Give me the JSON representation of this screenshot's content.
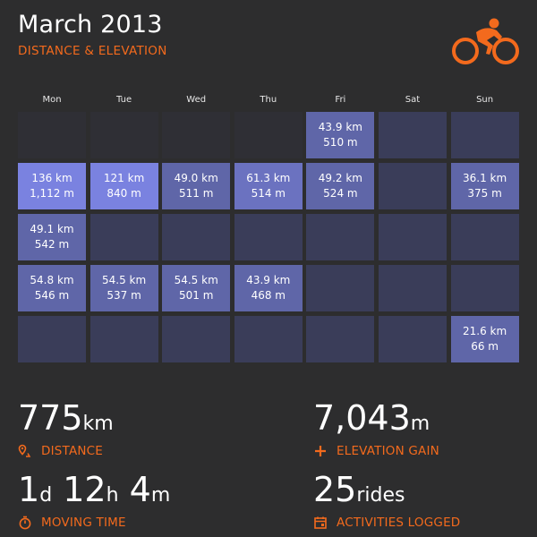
{
  "header": {
    "title": "March 2013",
    "subtitle": "DISTANCE & ELEVATION"
  },
  "colors": {
    "accent": "#f36a1d",
    "background": "#2d2d2e",
    "empty_cell": "#2f2f35",
    "no_ride_cell": "#3a3d59",
    "level_1": "#5f66a8",
    "level_2": "#6b72c0",
    "level_3": "#7a82e0"
  },
  "calendar": {
    "day_headers": [
      "Mon",
      "Tue",
      "Wed",
      "Thu",
      "Fri",
      "Sat",
      "Sun"
    ],
    "weeks": [
      [
        {
          "state": "outside"
        },
        {
          "state": "outside"
        },
        {
          "state": "outside"
        },
        {
          "state": "outside"
        },
        {
          "state": "ride",
          "level": 1,
          "distance": "43.9 km",
          "elevation": "510 m"
        },
        {
          "state": "none"
        },
        {
          "state": "none"
        }
      ],
      [
        {
          "state": "ride",
          "level": 3,
          "distance": "136 km",
          "elevation": "1,112 m"
        },
        {
          "state": "ride",
          "level": 3,
          "distance": "121 km",
          "elevation": "840 m"
        },
        {
          "state": "ride",
          "level": 1,
          "distance": "49.0 km",
          "elevation": "511 m"
        },
        {
          "state": "ride",
          "level": 2,
          "distance": "61.3 km",
          "elevation": "514 m"
        },
        {
          "state": "ride",
          "level": 1,
          "distance": "49.2 km",
          "elevation": "524 m"
        },
        {
          "state": "none"
        },
        {
          "state": "ride",
          "level": 1,
          "distance": "36.1 km",
          "elevation": "375 m"
        }
      ],
      [
        {
          "state": "ride",
          "level": 1,
          "distance": "49.1 km",
          "elevation": "542 m"
        },
        {
          "state": "none"
        },
        {
          "state": "none"
        },
        {
          "state": "none"
        },
        {
          "state": "none"
        },
        {
          "state": "none"
        },
        {
          "state": "none"
        }
      ],
      [
        {
          "state": "ride",
          "level": 1,
          "distance": "54.8 km",
          "elevation": "546 m"
        },
        {
          "state": "ride",
          "level": 1,
          "distance": "54.5 km",
          "elevation": "537 m"
        },
        {
          "state": "ride",
          "level": 1,
          "distance": "54.5 km",
          "elevation": "501 m"
        },
        {
          "state": "ride",
          "level": 1,
          "distance": "43.9 km",
          "elevation": "468 m"
        },
        {
          "state": "none"
        },
        {
          "state": "none"
        },
        {
          "state": "none"
        }
      ],
      [
        {
          "state": "none"
        },
        {
          "state": "none"
        },
        {
          "state": "none"
        },
        {
          "state": "none"
        },
        {
          "state": "none"
        },
        {
          "state": "none"
        },
        {
          "state": "ride",
          "level": 1,
          "distance": "21.6 km",
          "elevation": "66 m"
        }
      ]
    ]
  },
  "stats": {
    "distance": {
      "value": "775",
      "unit": "km",
      "label": "DISTANCE",
      "icon": "route-pin-icon"
    },
    "elevation": {
      "value": "7,043",
      "unit": "m",
      "label": "ELEVATION GAIN",
      "icon": "plus-icon"
    },
    "moving_time": {
      "d_value": "1",
      "d_unit": "d",
      "h_value": "12",
      "h_unit": "h",
      "m_value": "4",
      "m_unit": "m",
      "label": "MOVING TIME",
      "icon": "stopwatch-icon"
    },
    "activities": {
      "value": "25",
      "unit": "rides",
      "label": "ACTIVITIES LOGGED",
      "icon": "calendar-icon"
    }
  }
}
